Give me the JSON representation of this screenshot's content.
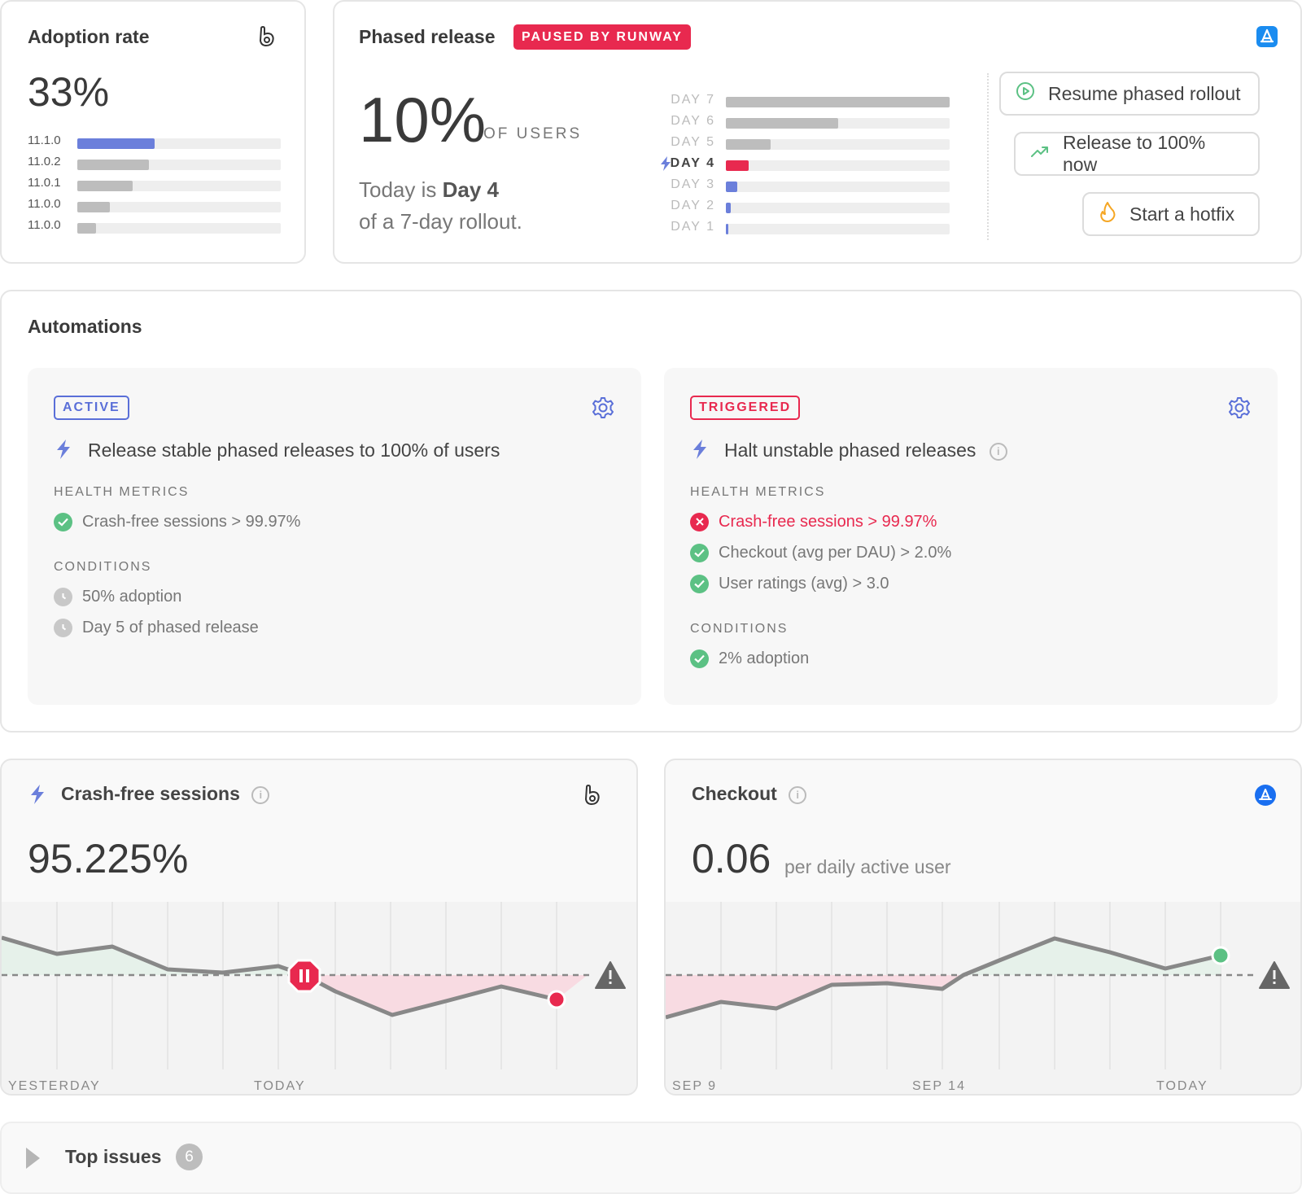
{
  "adoption": {
    "title": "Adoption rate",
    "value": "33%",
    "versions": [
      {
        "label": "11.1.0",
        "pct": 0.38,
        "color": "#6b7fdb"
      },
      {
        "label": "11.0.2",
        "pct": 0.35,
        "color": "#bdbdbd"
      },
      {
        "label": "11.0.1",
        "pct": 0.27,
        "color": "#bdbdbd"
      },
      {
        "label": "11.0.0",
        "pct": 0.16,
        "color": "#bdbdbd"
      },
      {
        "label": "11.0.0",
        "pct": 0.09,
        "color": "#bdbdbd"
      }
    ]
  },
  "phased": {
    "title": "Phased release",
    "badge": "PAUSED BY RUNWAY",
    "value": "10%",
    "value_unit": "OF USERS",
    "desc_line1_prefix": "Today is ",
    "desc_line1_bold": "Day 4",
    "desc_line2": "of a 7-day rollout.",
    "days": [
      {
        "label": "DAY 7",
        "pct": 1.0,
        "color": "#bdbdbd",
        "current": false
      },
      {
        "label": "DAY 6",
        "pct": 0.5,
        "color": "#bdbdbd",
        "current": false
      },
      {
        "label": "DAY 5",
        "pct": 0.2,
        "color": "#bdbdbd",
        "current": false
      },
      {
        "label": "DAY 4",
        "pct": 0.1,
        "color": "#e8294f",
        "current": true
      },
      {
        "label": "DAY 3",
        "pct": 0.05,
        "color": "#6b7fdb",
        "current": false
      },
      {
        "label": "DAY 2",
        "pct": 0.02,
        "color": "#6b7fdb",
        "current": false
      },
      {
        "label": "DAY 1",
        "pct": 0.01,
        "color": "#6b7fdb",
        "current": false
      }
    ],
    "buttons": {
      "resume": "Resume phased rollout",
      "release": "Release to 100% now",
      "hotfix": "Start a hotfix"
    }
  },
  "automations": {
    "title": "Automations",
    "left": {
      "tag": "ACTIVE",
      "title": "Release stable phased releases to 100% of users",
      "health_label": "HEALTH METRICS",
      "health": [
        "Crash-free sessions > 99.97%"
      ],
      "conditions_label": "CONDITIONS",
      "conditions": [
        "50% adoption",
        "Day 5 of phased release"
      ]
    },
    "right": {
      "tag": "TRIGGERED",
      "title": "Halt unstable phased releases",
      "health_label": "HEALTH METRICS",
      "health": [
        "Crash-free sessions > 99.97%",
        "Checkout (avg per DAU) > 2.0%",
        "User ratings (avg) > 3.0"
      ],
      "conditions_label": "CONDITIONS",
      "conditions": [
        "2% adoption"
      ]
    }
  },
  "crash": {
    "title": "Crash-free sessions",
    "value": "95.225%",
    "axis": [
      "YESTERDAY",
      "TODAY"
    ]
  },
  "checkout": {
    "title": "Checkout",
    "value": "0.06",
    "unit": "per daily active user",
    "axis": [
      "SEP 9",
      "SEP 14",
      "TODAY"
    ]
  },
  "issues": {
    "title": "Top issues",
    "count": "6"
  },
  "colors": {
    "accent": "#6b7fdb",
    "danger": "#e8294f",
    "success": "#5cc184"
  }
}
